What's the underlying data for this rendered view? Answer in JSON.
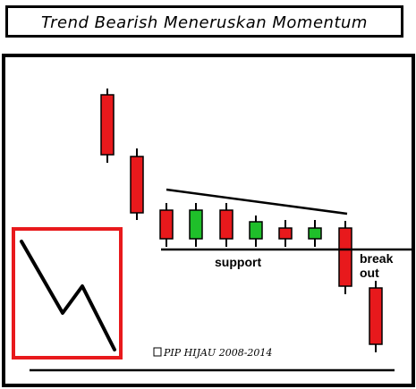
{
  "title": "Trend Bearish Meneruskan Momentum",
  "labels": {
    "support": "support",
    "breakout_line1": "break",
    "breakout_line2": "out",
    "copyright": "PIP HIJAU 2008-2014"
  },
  "colors": {
    "bearish": "#e8191c",
    "bullish": "#1fbf2a",
    "outline": "#000000",
    "inset_border": "#e8191c"
  }
}
